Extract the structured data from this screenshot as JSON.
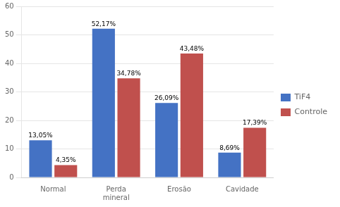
{
  "chart_data": {
    "type": "bar",
    "categories": [
      "Normal",
      "Perda\nmineral",
      "Erosão",
      "Cavidade"
    ],
    "series": [
      {
        "name": "TiF4",
        "color": "#4472C4",
        "values": [
          13.05,
          52.17,
          26.09,
          8.69
        ],
        "value_labels": [
          "13,05%",
          "52,17%",
          "26,09%",
          "8,69%"
        ]
      },
      {
        "name": "Controle",
        "color": "#C0504D",
        "values": [
          4.35,
          34.78,
          43.48,
          17.39
        ],
        "value_labels": [
          "4,35%",
          "34,78%",
          "43,48%",
          "17,39%"
        ]
      }
    ],
    "ylim": [
      0,
      60
    ],
    "yticks": [
      0,
      10,
      20,
      30,
      40,
      50,
      60
    ],
    "grid": true,
    "legend": "right",
    "data_labels": true
  }
}
